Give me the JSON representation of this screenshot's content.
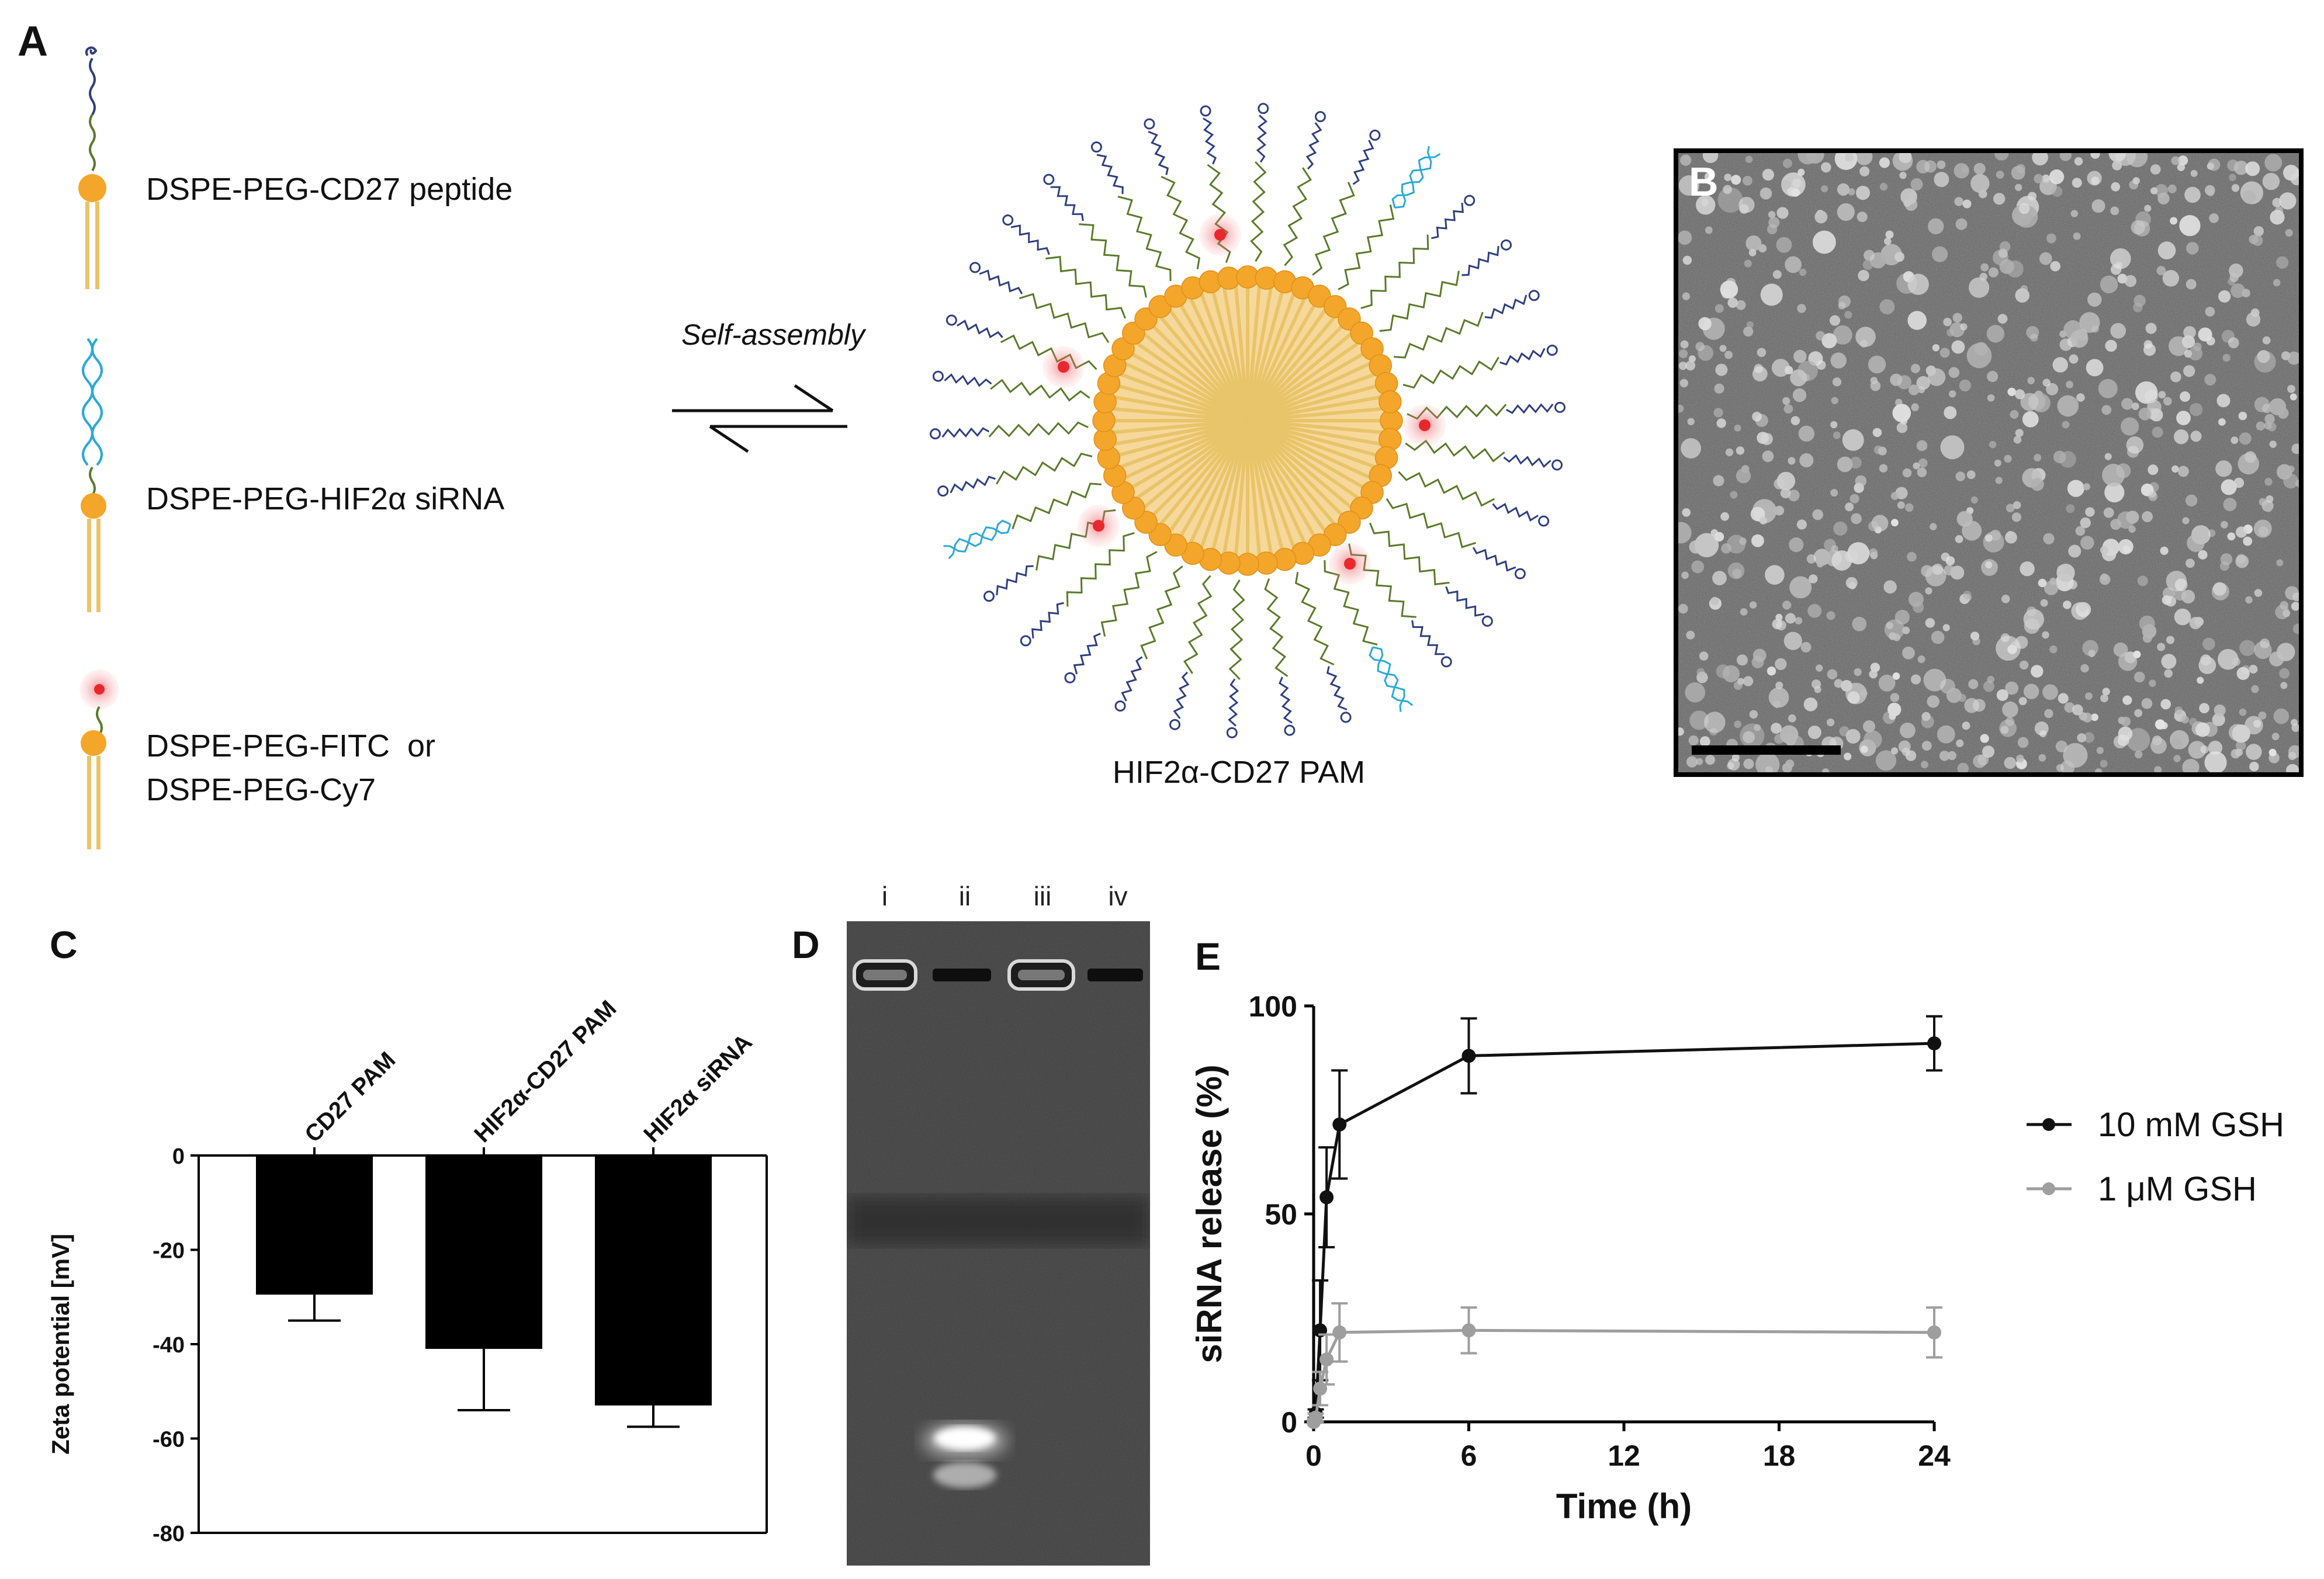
{
  "panels": {
    "a": {
      "letter": "A",
      "components": [
        {
          "label": "DSPE-PEG-CD27 peptide"
        },
        {
          "label": "DSPE-PEG-HIF2α siRNA"
        },
        {
          "label_line1": "DSPE-PEG-FITC  or",
          "label_line2": "DSPE-PEG-Cy7"
        }
      ],
      "arrow_label": "Self-assembly",
      "product_label": "HIF2α-CD27 PAM"
    },
    "b": {
      "letter": "B"
    },
    "c": {
      "letter": "C"
    },
    "d": {
      "letter": "D",
      "lanes": [
        "i",
        "ii",
        "iii",
        "iv"
      ]
    },
    "e": {
      "letter": "E"
    }
  },
  "colors": {
    "lipid_head": "#F4A62A",
    "lipid_tail": "#E8C46A",
    "peg": "#5A7A2A",
    "peptide": "#2E3F7F",
    "sirna": "#29A9D6",
    "dye": "#E8272E",
    "series_10mM": "#111111",
    "series_1uM": "#9E9E9E"
  },
  "chart_data": [
    {
      "panel": "C",
      "type": "bar",
      "categories": [
        "CD27  PAM",
        "HIF2α-CD27 PAM",
        "HIF2α siRNA"
      ],
      "values": [
        -29.5,
        -41,
        -53
      ],
      "errors": [
        5.5,
        13,
        4.5
      ],
      "ylabel": "Zeta potential [mV]",
      "ylim": [
        -80,
        0
      ],
      "yticks": [
        "0",
        "-20",
        "-40",
        "-60",
        "-80"
      ]
    },
    {
      "panel": "E",
      "type": "line",
      "xlabel": "Time (h)",
      "ylabel": "siRNA release (%)",
      "xlim": [
        0,
        24
      ],
      "ylim": [
        0,
        100
      ],
      "xticks": [
        "0",
        "6",
        "12",
        "18",
        "24"
      ],
      "yticks": [
        "0",
        "50",
        "100"
      ],
      "legend_position": "right",
      "series": [
        {
          "name": "10 mM GSH",
          "x": [
            0,
            0.08,
            0.25,
            0.5,
            1,
            6,
            24
          ],
          "y": [
            0,
            2,
            22,
            54,
            71.5,
            88,
            91
          ],
          "err": [
            0,
            1,
            12,
            12,
            13,
            9,
            6.5
          ]
        },
        {
          "name": "1 μM GSH",
          "x": [
            0,
            0.08,
            0.25,
            0.5,
            1,
            6,
            24
          ],
          "y": [
            0,
            1,
            8,
            15,
            21.5,
            22,
            21.5
          ],
          "err": [
            0,
            1,
            4,
            6,
            7,
            5.5,
            6
          ]
        }
      ]
    }
  ]
}
